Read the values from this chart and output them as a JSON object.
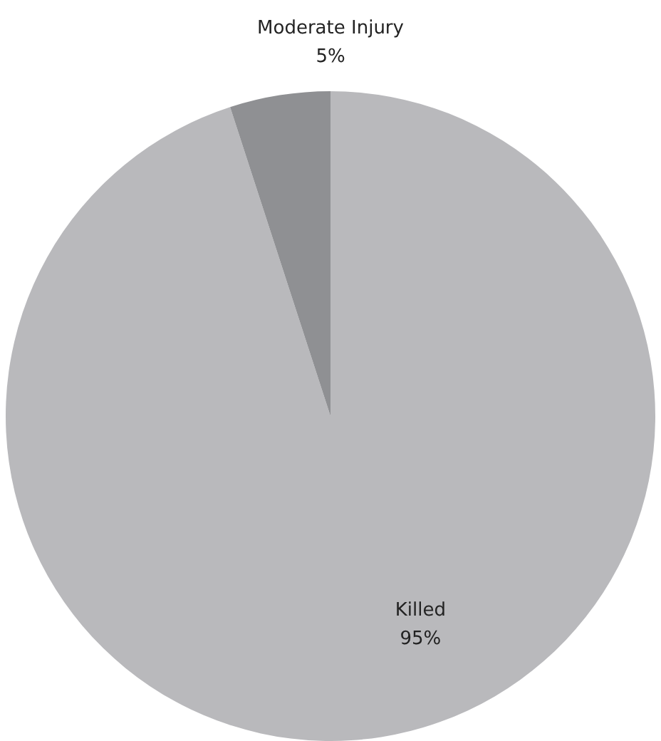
{
  "chart_data": {
    "type": "pie",
    "categories": [
      "Killed",
      "Moderate Injury"
    ],
    "values": [
      95,
      5
    ],
    "colors": [
      "#b9b9bc",
      "#8f9093"
    ],
    "value_labels": [
      "95%",
      "5%"
    ],
    "legend": false
  }
}
